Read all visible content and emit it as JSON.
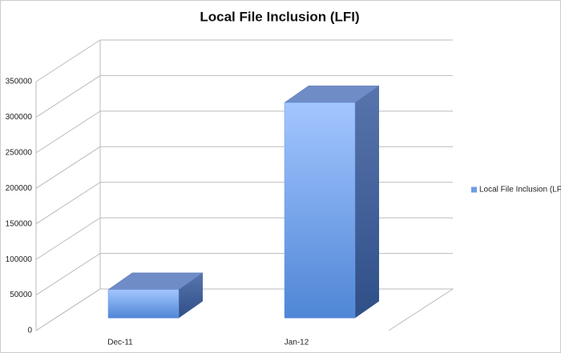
{
  "chart_data": {
    "type": "bar3d",
    "title": "Local File Inclusion (LFI)",
    "categories": [
      "Dec-11",
      "Jan-12"
    ],
    "series": [
      {
        "name": "Local File Inclusion (LFI)",
        "color": "#6f9be6",
        "values": [
          40000,
          303000
        ]
      }
    ],
    "ylim": [
      0,
      350000
    ],
    "yticks": [
      0,
      50000,
      100000,
      150000,
      200000,
      250000,
      300000,
      350000
    ],
    "grid": true,
    "legend": "right"
  }
}
